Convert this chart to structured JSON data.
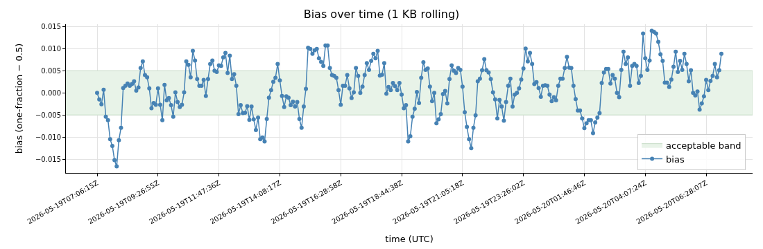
{
  "chart_data": {
    "type": "line",
    "title": "Bias over time (1 KB rolling)",
    "xlabel": "time (UTC)",
    "ylabel": "bias (one-fraction − 0.5)",
    "categories": [
      "2026-05-19T07:06:15Z",
      null,
      null,
      null,
      null,
      null,
      null,
      null,
      null,
      null,
      null,
      null,
      null,
      null,
      null,
      null,
      null,
      null,
      null,
      null,
      null,
      null,
      null,
      null,
      null,
      null,
      null,
      null,
      "2026-05-19T09:26:55Z",
      null,
      null,
      null,
      null,
      null,
      null,
      null,
      null,
      null,
      null,
      null,
      null,
      null,
      null,
      null,
      null,
      null,
      null,
      null,
      null,
      null,
      null,
      null,
      null,
      null,
      null,
      null,
      "2026-05-19T11:47:36Z",
      null,
      null,
      null,
      null,
      null,
      null,
      null,
      null,
      null,
      null,
      null,
      null,
      null,
      null,
      null,
      null,
      null,
      null,
      null,
      null,
      null,
      null,
      null,
      null,
      null,
      null,
      null,
      "2026-05-19T14:08:17Z",
      null,
      null,
      null,
      null,
      null,
      null,
      null,
      null,
      null,
      null,
      null,
      null,
      null,
      null,
      null,
      null,
      null,
      null,
      null,
      null,
      null,
      null,
      null,
      null,
      null,
      null,
      null,
      "2026-05-19T16:28:58Z",
      null,
      null,
      null,
      null,
      null,
      null,
      null,
      null,
      null,
      null,
      null,
      null,
      null,
      null,
      null,
      null,
      null,
      null,
      null,
      null,
      null,
      null,
      null,
      null,
      null,
      null,
      null,
      "2026-05-19T18:44:38Z",
      null,
      null,
      null,
      null,
      null,
      null,
      null,
      null,
      null,
      null,
      null,
      null,
      null,
      null,
      null,
      null,
      null,
      null,
      null,
      null,
      null,
      null,
      null,
      null,
      null,
      null,
      null,
      "2026-05-19T21:05:18Z",
      null,
      null,
      null,
      null,
      null,
      null,
      null,
      null,
      null,
      null,
      null,
      null,
      null,
      null,
      null,
      null,
      null,
      null,
      null,
      null,
      null,
      null,
      null,
      null,
      null,
      null,
      null,
      "2026-05-19T23:26:02Z",
      null,
      null,
      null,
      null,
      null,
      null,
      null,
      null,
      null,
      null,
      null,
      null,
      null,
      null,
      null,
      null,
      null,
      null,
      null,
      null,
      null,
      null,
      null,
      null,
      null,
      null,
      null,
      "2026-05-20T01:46:46Z",
      null,
      null,
      null,
      null,
      null,
      null,
      null,
      null,
      null,
      null,
      null,
      null,
      null,
      null,
      null,
      null,
      null,
      null,
      null,
      null,
      null,
      null,
      null,
      null,
      null,
      null,
      null,
      "2026-05-20T04:07:24Z",
      null,
      null,
      null,
      null,
      null,
      null,
      null,
      null,
      null,
      null,
      null,
      null,
      null,
      null,
      null,
      null,
      null,
      null,
      null,
      null,
      null,
      null,
      null,
      null,
      null,
      null,
      null,
      "2026-05-20T06:28:07Z",
      null,
      null,
      null,
      null,
      null,
      null,
      null
    ],
    "series": [
      {
        "name": "bias",
        "color": "#4682b4",
        "values": [
          0.0,
          -0.0015,
          -0.0026,
          0.0007,
          -0.0054,
          -0.0062,
          -0.0105,
          -0.012,
          -0.0152,
          -0.0166,
          -0.0107,
          -0.0079,
          0.0011,
          0.0016,
          0.0021,
          0.0016,
          0.002,
          0.0026,
          0.0005,
          0.0012,
          0.0056,
          0.0071,
          0.004,
          0.0035,
          0.001,
          -0.0035,
          -0.0023,
          -0.0027,
          0.001,
          -0.0027,
          -0.0062,
          0.0018,
          -0.0017,
          -0.0012,
          -0.0028,
          -0.0054,
          0.0001,
          -0.0021,
          -0.0032,
          -0.0027,
          0.0001,
          0.0071,
          0.0063,
          0.0035,
          0.0095,
          0.0073,
          0.0031,
          0.0016,
          0.0016,
          0.0029,
          -0.0007,
          0.0031,
          0.0065,
          0.0073,
          0.005,
          0.0047,
          0.0062,
          0.0061,
          0.008,
          0.009,
          0.0045,
          0.0084,
          0.0031,
          0.0042,
          0.0016,
          -0.0048,
          -0.0028,
          -0.0046,
          -0.0045,
          -0.003,
          -0.0061,
          -0.0031,
          -0.006,
          -0.0084,
          -0.0056,
          -0.0105,
          -0.0101,
          -0.011,
          -0.0059,
          -0.0011,
          0.0006,
          0.0025,
          0.0034,
          0.0065,
          0.0028,
          -0.0007,
          -0.0032,
          -0.0008,
          -0.0011,
          -0.0028,
          -0.002,
          -0.0031,
          -0.0021,
          -0.0059,
          -0.0079,
          -0.0031,
          0.0009,
          0.0102,
          0.0099,
          0.0088,
          0.0096,
          0.0099,
          0.0078,
          0.007,
          0.0061,
          0.0107,
          0.0107,
          0.0056,
          0.004,
          0.0038,
          0.0034,
          0.0006,
          -0.0027,
          0.0016,
          0.0016,
          0.004,
          0.001,
          -0.0012,
          0.0001,
          0.0056,
          0.0038,
          0.0,
          0.0014,
          0.004,
          0.0067,
          0.0052,
          0.0072,
          0.0088,
          0.0078,
          0.0095,
          0.0039,
          0.0041,
          0.0067,
          -0.0002,
          0.0013,
          0.0006,
          0.0022,
          0.0015,
          0.0006,
          0.0022,
          -0.0004,
          -0.0035,
          -0.0028,
          -0.011,
          -0.0098,
          -0.0054,
          -0.0036,
          0.0002,
          -0.0023,
          0.0034,
          0.0069,
          0.0052,
          0.0055,
          0.0014,
          -0.0019,
          0.0,
          -0.0069,
          -0.006,
          -0.0048,
          -0.0003,
          0.0004,
          -0.0024,
          0.0031,
          0.0062,
          0.005,
          0.0045,
          0.0056,
          0.0052,
          0.0014,
          -0.0044,
          -0.0077,
          -0.0105,
          -0.0125,
          -0.0079,
          -0.0051,
          0.0026,
          0.0032,
          0.0051,
          0.0076,
          0.0051,
          0.0046,
          0.0031,
          0.0001,
          -0.0015,
          -0.0058,
          -0.0016,
          -0.0031,
          -0.0063,
          -0.0021,
          0.0016,
          0.0032,
          -0.0031,
          -0.0004,
          0.0,
          0.001,
          0.003,
          0.0055,
          0.01,
          0.0071,
          0.009,
          0.0065,
          0.002,
          0.0024,
          0.0011,
          -0.0009,
          0.0016,
          0.0017,
          0.0016,
          -0.0004,
          -0.0019,
          -0.001,
          -0.0017,
          0.0016,
          0.0032,
          0.0032,
          0.0056,
          0.0081,
          0.0057,
          0.0056,
          0.0016,
          -0.0014,
          -0.004,
          -0.004,
          -0.0058,
          -0.008,
          -0.0069,
          -0.0062,
          -0.0062,
          -0.0091,
          -0.0067,
          -0.0056,
          -0.0046,
          0.0022,
          0.0046,
          0.0054,
          0.0054,
          0.0021,
          0.004,
          0.0032,
          0.0,
          -0.001,
          0.0052,
          0.0093,
          0.0065,
          0.008,
          0.0016,
          0.0061,
          0.0065,
          0.0061,
          0.0022,
          0.0038,
          0.0134,
          0.0078,
          0.0052,
          0.0073,
          0.014,
          0.0138,
          0.0134,
          0.0115,
          0.0087,
          0.0072,
          0.0023,
          0.0023,
          0.0013,
          0.003,
          0.0059,
          0.0093,
          0.0047,
          0.0072,
          0.0052,
          0.0088,
          0.0065,
          0.0026,
          0.0051,
          0.0,
          -0.0006,
          0.0003,
          -0.0038,
          -0.0024,
          -0.0008,
          0.0029,
          0.0006,
          0.0027,
          0.0038,
          0.0065,
          0.0035,
          0.0051,
          0.0088
        ]
      }
    ],
    "bands": [
      {
        "axis": "y",
        "from": -0.005,
        "to": 0.005,
        "label": "acceptable band",
        "color": "#e8f3e8"
      }
    ],
    "ylim": [
      -0.0181,
      0.0155
    ],
    "yticks": [
      {
        "value": -0.015,
        "label": "−0.015"
      },
      {
        "value": -0.01,
        "label": "−0.010"
      },
      {
        "value": -0.005,
        "label": "−0.005"
      },
      {
        "value": 0,
        "label": "0.000"
      },
      {
        "value": 0.005,
        "label": "0.005"
      },
      {
        "value": 0.01,
        "label": "0.010"
      },
      {
        "value": 0.015,
        "label": "0.015"
      }
    ],
    "grid": true,
    "legend": "bottom right",
    "marker": "circle",
    "line_style": "solid"
  }
}
